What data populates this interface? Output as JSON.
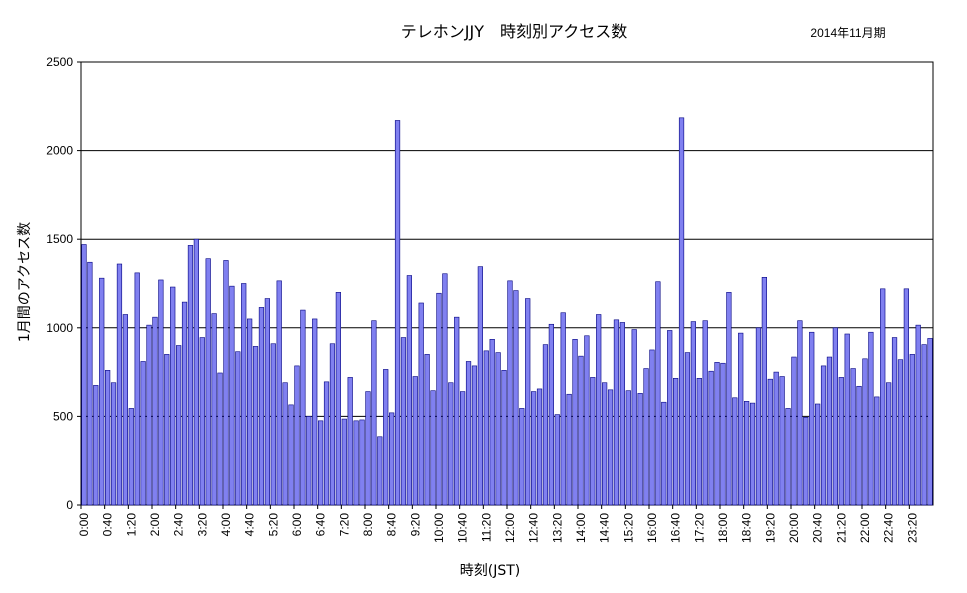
{
  "chart_data": {
    "type": "bar",
    "title": "テレホンJJY　時刻別アクセス数",
    "period_label": "2014年11月期",
    "xlabel": "時刻(JST)",
    "ylabel": "1月間のアクセス数",
    "ylim": [
      0,
      2500
    ],
    "yticks": [
      0,
      500,
      1000,
      1500,
      2000,
      2500
    ],
    "grid": true,
    "colors": {
      "bar_fill": "#8080f0",
      "bar_stroke": "#000080",
      "grid": "#000000"
    },
    "x_tick_labels": [
      "0:00",
      "0:40",
      "1:20",
      "2:00",
      "2:40",
      "3:20",
      "4:00",
      "4:40",
      "5:20",
      "6:00",
      "6:40",
      "7:20",
      "8:00",
      "8:40",
      "9:20",
      "10:00",
      "10:40",
      "11:20",
      "12:00",
      "12:40",
      "13:20",
      "14:00",
      "14:40",
      "15:20",
      "16:00",
      "16:40",
      "17:20",
      "18:00",
      "18:40",
      "19:20",
      "20:00",
      "20:40",
      "21:20",
      "22:00",
      "22:40",
      "23:20"
    ],
    "values": [
      1470,
      1370,
      675,
      1280,
      760,
      690,
      1360,
      1075,
      545,
      1310,
      810,
      1015,
      1060,
      1270,
      850,
      1230,
      900,
      1145,
      1465,
      1500,
      945,
      1390,
      1080,
      745,
      1380,
      1235,
      865,
      1250,
      1050,
      895,
      1115,
      1165,
      910,
      1265,
      690,
      565,
      785,
      1100,
      500,
      1050,
      475,
      695,
      910,
      1200,
      485,
      720,
      475,
      480,
      640,
      1040,
      385,
      765,
      520,
      2170,
      945,
      1295,
      725,
      1140,
      850,
      645,
      1195,
      1305,
      690,
      1060,
      640,
      810,
      785,
      1345,
      870,
      935,
      860,
      760,
      1265,
      1210,
      545,
      1165,
      640,
      655,
      905,
      1020,
      510,
      1085,
      625,
      935,
      840,
      955,
      720,
      1075,
      690,
      650,
      1045,
      1030,
      645,
      990,
      630,
      770,
      875,
      1260,
      580,
      985,
      715,
      2185,
      860,
      1035,
      715,
      1040,
      755,
      805,
      800,
      1200,
      605,
      970,
      585,
      575,
      1000,
      1285,
      710,
      750,
      725,
      545,
      835,
      1040,
      495,
      975,
      570,
      785,
      835,
      1000,
      720,
      965,
      770,
      670,
      825,
      975,
      610,
      1220,
      690,
      945,
      820,
      1220,
      850,
      1015,
      905,
      940
    ]
  }
}
